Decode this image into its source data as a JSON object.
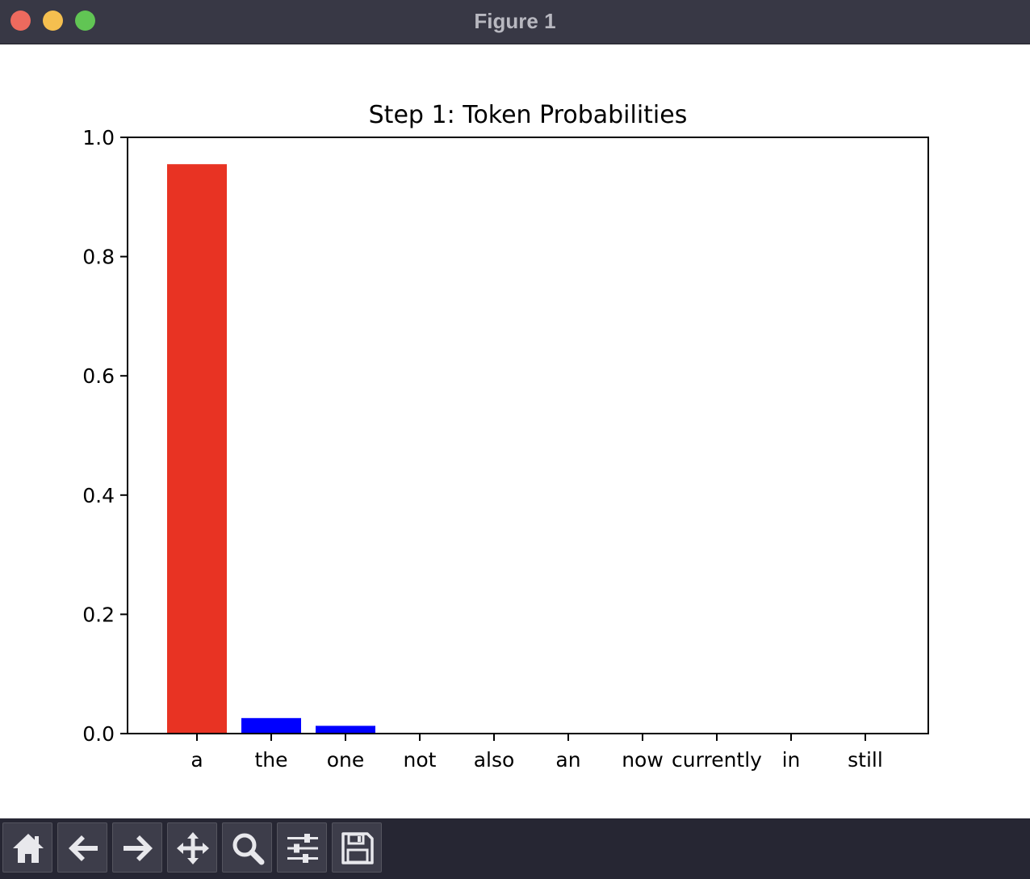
{
  "window": {
    "title": "Figure 1"
  },
  "toolbar": {
    "buttons": [
      {
        "name": "home-icon"
      },
      {
        "name": "back-arrow-icon"
      },
      {
        "name": "forward-arrow-icon"
      },
      {
        "name": "pan-move-icon"
      },
      {
        "name": "zoom-magnifier-icon"
      },
      {
        "name": "configure-subplots-icon"
      },
      {
        "name": "save-floppy-icon"
      }
    ]
  },
  "chart_data": {
    "type": "bar",
    "title": "Step 1: Token Probabilities",
    "xlabel": "",
    "ylabel": "",
    "categories": [
      "a",
      "the",
      "one",
      "not",
      "also",
      "an",
      "now",
      "currently",
      "in",
      "still"
    ],
    "values": [
      0.955,
      0.026,
      0.013,
      0.001,
      0.0008,
      0.0007,
      0.0006,
      0.0005,
      0.0004,
      0.0003
    ],
    "bar_colors": [
      "#e83323",
      "#0000ff",
      "#0000ff",
      "#0000ff",
      "#0000ff",
      "#0000ff",
      "#0000ff",
      "#0000ff",
      "#0000ff",
      "#0000ff"
    ],
    "ylim": [
      0,
      1.0
    ],
    "yticks": [
      0.0,
      0.2,
      0.4,
      0.6,
      0.8,
      1.0
    ],
    "ytick_labels": [
      "0.0",
      "0.2",
      "0.4",
      "0.6",
      "0.8",
      "1.0"
    ],
    "grid": false,
    "legend": "none"
  }
}
